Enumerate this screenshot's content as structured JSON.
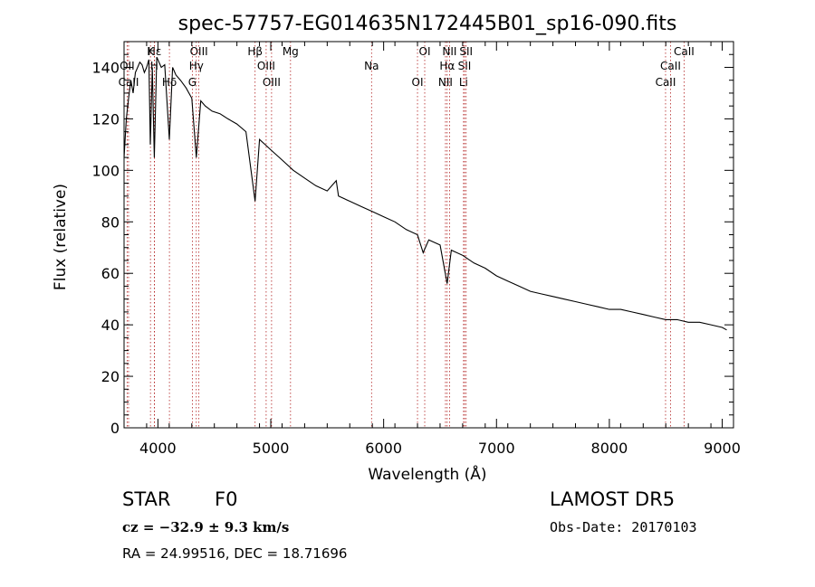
{
  "chart_data": {
    "type": "line",
    "title": "spec-57757-EG014635N172445B01_sp16-090.fits",
    "xlabel": "Wavelength (Å)",
    "ylabel": "Flux (relative)",
    "xlim": [
      3700,
      9100
    ],
    "ylim": [
      0,
      150
    ],
    "xticks": [
      4000,
      5000,
      6000,
      7000,
      8000,
      9000
    ],
    "yticks": [
      0,
      20,
      40,
      60,
      80,
      100,
      120,
      140
    ],
    "grid": false,
    "series": [
      {
        "x": [
          3700,
          3720,
          3740,
          3760,
          3780,
          3800,
          3820,
          3840,
          3860,
          3880,
          3900,
          3920,
          3933,
          3950,
          3968,
          3990,
          4010,
          4030,
          4060,
          4101,
          4130,
          4160,
          4200,
          4250,
          4300,
          4340,
          4380,
          4420,
          4480,
          4550,
          4620,
          4700,
          4780,
          4861,
          4900,
          4950,
          5000,
          5100,
          5200,
          5300,
          5400,
          5500,
          5580,
          5600,
          5700,
          5800,
          5900,
          6000,
          6100,
          6200,
          6300,
          6350,
          6400,
          6500,
          6563,
          6600,
          6700,
          6800,
          6900,
          7000,
          7100,
          7200,
          7300,
          7400,
          7500,
          7600,
          7700,
          7800,
          7900,
          8000,
          8100,
          8200,
          8300,
          8400,
          8500,
          8600,
          8700,
          8800,
          8900,
          9000,
          9040
        ],
        "y": [
          105,
          120,
          128,
          135,
          130,
          138,
          140,
          142,
          141,
          138,
          140,
          143,
          110,
          140,
          105,
          144,
          142,
          140,
          141,
          112,
          140,
          137,
          135,
          132,
          128,
          105,
          127,
          125,
          123,
          122,
          120,
          118,
          115,
          88,
          112,
          110,
          108,
          104,
          100,
          97,
          94,
          92,
          96,
          90,
          88,
          86,
          84,
          82,
          80,
          77,
          75,
          68,
          73,
          71,
          56,
          69,
          67,
          64,
          62,
          59,
          57,
          55,
          53,
          52,
          51,
          50,
          49,
          48,
          47,
          46,
          46,
          45,
          44,
          43,
          42,
          42,
          41,
          41,
          40,
          39,
          38
        ]
      }
    ],
    "line_markers": [
      {
        "label": "Hε",
        "x": 3970
      },
      {
        "label": "OII",
        "x": 3727
      },
      {
        "label": "CaII",
        "x": 3740
      },
      {
        "label": "K",
        "x": 3934
      },
      {
        "label": "H",
        "x": 3968
      },
      {
        "label": "Hδ",
        "x": 4102
      },
      {
        "label": "OIII",
        "x": 4363
      },
      {
        "label": "Hγ",
        "x": 4340
      },
      {
        "label": "G",
        "x": 4305
      },
      {
        "label": "Hβ",
        "x": 4861
      },
      {
        "label": "OIII",
        "x": 4959
      },
      {
        "label": "OIII",
        "x": 5007
      },
      {
        "label": "Mg",
        "x": 5175
      },
      {
        "label": "Na",
        "x": 5893
      },
      {
        "label": "OI",
        "x": 6300
      },
      {
        "label": "OI",
        "x": 6364
      },
      {
        "label": "Hα",
        "x": 6563
      },
      {
        "label": "NII",
        "x": 6548
      },
      {
        "label": "NII",
        "x": 6584
      },
      {
        "label": "SII",
        "x": 6717
      },
      {
        "label": "Li",
        "x": 6708
      },
      {
        "label": "SII",
        "x": 6731
      },
      {
        "label": "CaII",
        "x": 8542
      },
      {
        "label": "CaII",
        "x": 8498
      },
      {
        "label": "CaII",
        "x": 8662
      }
    ]
  },
  "info": {
    "class_type": "STAR",
    "subclass": "F0",
    "survey": "LAMOST DR5",
    "cz": "cz = −32.9 ± 9.3 km/s",
    "obs_date": "Obs-Date: 20170103",
    "coords": "RA =  24.99516, DEC =  18.71696"
  }
}
